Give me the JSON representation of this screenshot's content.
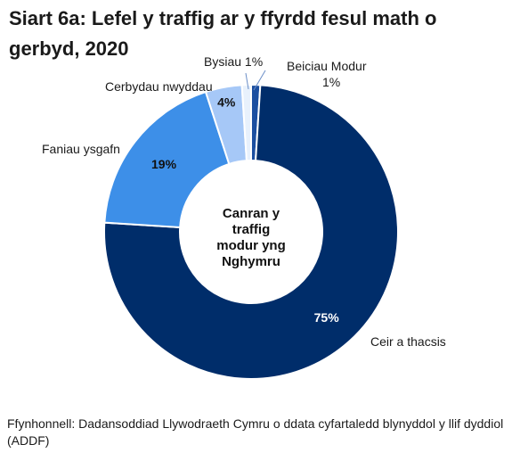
{
  "chart_data": {
    "type": "pie",
    "subtype": "donut",
    "title": "Siart 6a: Lefel y traffig ar y ffyrdd fesul math o gerbyd, 2020",
    "center_label": [
      "Canran y",
      "traffig",
      "modur yng",
      "Nghymru"
    ],
    "series": [
      {
        "name": "Ceir a thacsis",
        "value": 75,
        "label": "75%",
        "color": "#002d6a"
      },
      {
        "name": "Faniau ysgafn",
        "value": 19,
        "label": "19%",
        "color": "#3d8fe8"
      },
      {
        "name": "Cerbydau nwyddau",
        "value": 4,
        "label": "4%",
        "color": "#a6c8f7"
      },
      {
        "name": "Bysiau",
        "value": 1,
        "label": "1%",
        "color": "#e8f1fc"
      },
      {
        "name": "Beiciau Modur",
        "value": 1,
        "label": "1%",
        "color": "#1c4fa0"
      }
    ]
  },
  "outside_labels": {
    "ceir": "Ceir a thacsis",
    "faniau": "Faniau ysgafn",
    "cerbydau": "Cerbydau nwyddau",
    "bysiau": "Bysiau 1%",
    "beiciau_line1": "Beiciau Modur",
    "beiciau_line2": "1%"
  },
  "source": "Ffynhonnell: Dadansoddiad Llywodraeth Cymru o ddata cyfartaledd blynyddol y llif dyddiol (ADDF)"
}
